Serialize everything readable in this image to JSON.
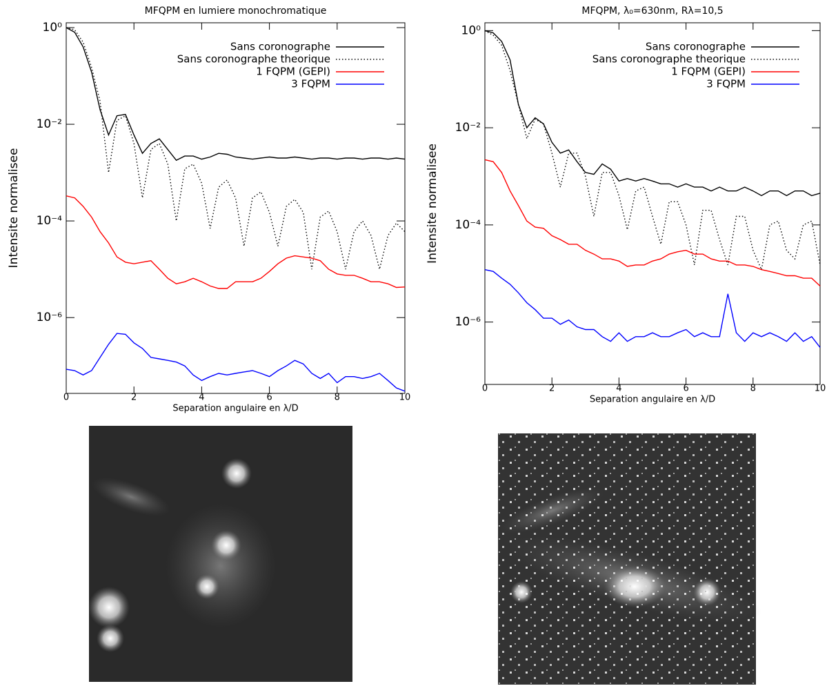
{
  "chart_data": [
    {
      "type": "line",
      "title": "MFQPM en lumiere monochromatique",
      "x_label": "Separation angulaire en λ/D",
      "y_label": "Intensite normalisee",
      "log_y": true,
      "legend": "upper right",
      "xlim": [
        0,
        10
      ],
      "ylim": [
        2.7e-08,
        1.26
      ],
      "xticks": [
        0,
        2,
        4,
        6,
        8,
        10
      ],
      "yticks": [
        {
          "value": 1,
          "label": "10⁰"
        },
        {
          "value": 0.01,
          "label": "10⁻²"
        },
        {
          "value": 0.0001,
          "label": "10⁻⁴"
        },
        {
          "value": 1e-06,
          "label": "10⁻⁶"
        }
      ],
      "x": [
        0,
        0.25,
        0.5,
        0.75,
        1,
        1.25,
        1.5,
        1.75,
        2,
        2.25,
        2.5,
        2.75,
        3,
        3.25,
        3.5,
        3.75,
        4,
        4.25,
        4.5,
        4.75,
        5,
        5.25,
        5.5,
        5.75,
        6,
        6.25,
        6.5,
        6.75,
        7,
        7.25,
        7.5,
        7.75,
        8,
        8.25,
        8.5,
        8.75,
        9,
        9.25,
        9.5,
        9.75,
        10
      ],
      "series": [
        {
          "name": "Sans coronographe",
          "color": "#000000",
          "linestyle": "solid",
          "values": [
            1,
            0.8,
            0.4,
            0.12,
            0.02,
            0.006,
            0.015,
            0.016,
            0.006,
            0.0025,
            0.004,
            0.005,
            0.003,
            0.0018,
            0.0022,
            0.0022,
            0.0019,
            0.0021,
            0.0025,
            0.0024,
            0.0021,
            0.002,
            0.0019,
            0.002,
            0.0021,
            0.002,
            0.002,
            0.0021,
            0.002,
            0.0019,
            0.002,
            0.002,
            0.0019,
            0.002,
            0.002,
            0.0019,
            0.002,
            0.002,
            0.0019,
            0.002,
            0.0019
          ]
        },
        {
          "name": "Sans coronographe theorique",
          "color": "#000000",
          "linestyle": "dotted",
          "values": [
            1,
            0.9,
            0.5,
            0.15,
            0.03,
            0.001,
            0.012,
            0.015,
            0.004,
            0.0003,
            0.003,
            0.004,
            0.0015,
            0.0001,
            0.0012,
            0.0015,
            0.0006,
            7e-05,
            0.0005,
            0.0007,
            0.0003,
            3e-05,
            0.0003,
            0.0004,
            0.00015,
            3e-05,
            0.0002,
            0.00028,
            0.00015,
            1e-05,
            0.00012,
            0.00016,
            6e-05,
            1e-05,
            6e-05,
            0.0001,
            5e-05,
            1e-05,
            5e-05,
            9e-05,
            6e-05
          ]
        },
        {
          "name": "1 FQPM (GEPI)",
          "color": "#ff0000",
          "linestyle": "solid",
          "values": [
            0.00033,
            0.0003,
            0.0002,
            0.00012,
            6e-05,
            3.5e-05,
            1.8e-05,
            1.4e-05,
            1.3e-05,
            1.4e-05,
            1.5e-05,
            1e-05,
            6.5e-06,
            5e-06,
            5.5e-06,
            6.5e-06,
            5.5e-06,
            4.5e-06,
            4e-06,
            4e-06,
            5.5e-06,
            5.5e-06,
            5.5e-06,
            6.5e-06,
            9e-06,
            1.3e-05,
            1.7e-05,
            1.9e-05,
            1.8e-05,
            1.7e-05,
            1.5e-05,
            1e-05,
            8e-06,
            7.5e-06,
            7.5e-06,
            6.5e-06,
            5.5e-06,
            5.5e-06,
            5e-06,
            4.2e-06,
            4.3e-06
          ]
        },
        {
          "name": "3 FQPM",
          "color": "#0000ff",
          "linestyle": "solid",
          "values": [
            8.5e-08,
            8e-08,
            6.5e-08,
            8e-08,
            1.5e-07,
            2.8e-07,
            4.7e-07,
            4.5e-07,
            3e-07,
            2.3e-07,
            1.5e-07,
            1.4e-07,
            1.3e-07,
            1.2e-07,
            1e-07,
            6.5e-08,
            5e-08,
            6e-08,
            7e-08,
            6.5e-08,
            7e-08,
            7.5e-08,
            8e-08,
            7e-08,
            6e-08,
            8e-08,
            1e-07,
            1.3e-07,
            1.1e-07,
            7e-08,
            5.5e-08,
            7e-08,
            4.5e-08,
            6e-08,
            6e-08,
            5.5e-08,
            6e-08,
            7e-08,
            5e-08,
            3.5e-08,
            3e-08
          ]
        }
      ]
    },
    {
      "type": "line",
      "title": "MFQPM, λ₀=630nm, Rλ=10,5",
      "x_label": "Separation angulaire en λ/D",
      "y_label": "Intensite normalisee",
      "log_y": true,
      "legend": "upper right",
      "xlim": [
        0,
        10
      ],
      "ylim": [
        5.2e-08,
        1.45
      ],
      "xticks": [
        0,
        2,
        4,
        6,
        8,
        10
      ],
      "yticks": [
        {
          "value": 1,
          "label": "10⁰"
        },
        {
          "value": 0.01,
          "label": "10⁻²"
        },
        {
          "value": 0.0001,
          "label": "10⁻⁴"
        },
        {
          "value": 1e-06,
          "label": "10⁻⁶"
        }
      ],
      "x": [
        0,
        0.25,
        0.5,
        0.75,
        1,
        1.25,
        1.5,
        1.75,
        2,
        2.25,
        2.5,
        2.75,
        3,
        3.25,
        3.5,
        3.75,
        4,
        4.25,
        4.5,
        4.75,
        5,
        5.25,
        5.5,
        5.75,
        6,
        6.25,
        6.5,
        6.75,
        7,
        7.25,
        7.5,
        7.75,
        8,
        8.25,
        8.5,
        8.75,
        9,
        9.25,
        9.5,
        9.75,
        10
      ],
      "series": [
        {
          "name": "Sans coronographe",
          "color": "#000000",
          "linestyle": "solid",
          "values": [
            1,
            0.9,
            0.6,
            0.25,
            0.03,
            0.01,
            0.016,
            0.012,
            0.005,
            0.003,
            0.0035,
            0.002,
            0.0012,
            0.0011,
            0.0018,
            0.0014,
            0.0008,
            0.0009,
            0.0008,
            0.0009,
            0.0008,
            0.0007,
            0.0007,
            0.0006,
            0.0007,
            0.0006,
            0.0006,
            0.0005,
            0.0006,
            0.0005,
            0.0005,
            0.0006,
            0.0005,
            0.0004,
            0.0005,
            0.0005,
            0.0004,
            0.0005,
            0.0005,
            0.0004,
            0.00045
          ]
        },
        {
          "name": "Sans coronographe theorique",
          "color": "#000000",
          "linestyle": "dotted",
          "values": [
            1,
            0.8,
            0.5,
            0.15,
            0.03,
            0.006,
            0.015,
            0.012,
            0.003,
            0.0006,
            0.003,
            0.003,
            0.001,
            0.00015,
            0.0012,
            0.0012,
            0.0004,
            8e-05,
            0.0005,
            0.0006,
            0.00015,
            4e-05,
            0.0003,
            0.0003,
            0.0001,
            1.5e-05,
            0.0002,
            0.0002,
            5e-05,
            1.5e-05,
            0.00015,
            0.00015,
            3e-05,
            1.2e-05,
            0.0001,
            0.00012,
            3e-05,
            2e-05,
            0.0001,
            0.00012,
            1.5e-05
          ]
        },
        {
          "name": "1 FQPM (GEPI)",
          "color": "#ff0000",
          "linestyle": "solid",
          "values": [
            0.0022,
            0.002,
            0.0012,
            0.0005,
            0.00025,
            0.00012,
            9e-05,
            8.5e-05,
            6e-05,
            5e-05,
            4e-05,
            4e-05,
            3e-05,
            2.5e-05,
            2e-05,
            2e-05,
            1.8e-05,
            1.4e-05,
            1.5e-05,
            1.5e-05,
            1.8e-05,
            2e-05,
            2.5e-05,
            2.8e-05,
            3e-05,
            2.5e-05,
            2.5e-05,
            2e-05,
            1.8e-05,
            1.8e-05,
            1.5e-05,
            1.5e-05,
            1.4e-05,
            1.2e-05,
            1.1e-05,
            1e-05,
            9e-06,
            9e-06,
            8e-06,
            8e-06,
            5.5e-06
          ]
        },
        {
          "name": "3 FQPM",
          "color": "#0000ff",
          "linestyle": "solid",
          "values": [
            1.2e-05,
            1.1e-05,
            8e-06,
            6e-06,
            4e-06,
            2.5e-06,
            1.8e-06,
            1.2e-06,
            1.2e-06,
            9e-07,
            1.1e-06,
            8e-07,
            7e-07,
            7e-07,
            5e-07,
            4e-07,
            6e-07,
            4e-07,
            5e-07,
            5e-07,
            6e-07,
            5e-07,
            5e-07,
            6e-07,
            7e-07,
            5e-07,
            6e-07,
            5e-07,
            5e-07,
            3.8e-06,
            6e-07,
            4e-07,
            6e-07,
            5e-07,
            6e-07,
            5e-07,
            4e-07,
            6e-07,
            4e-07,
            5e-07,
            3e-07
          ]
        }
      ]
    }
  ]
}
